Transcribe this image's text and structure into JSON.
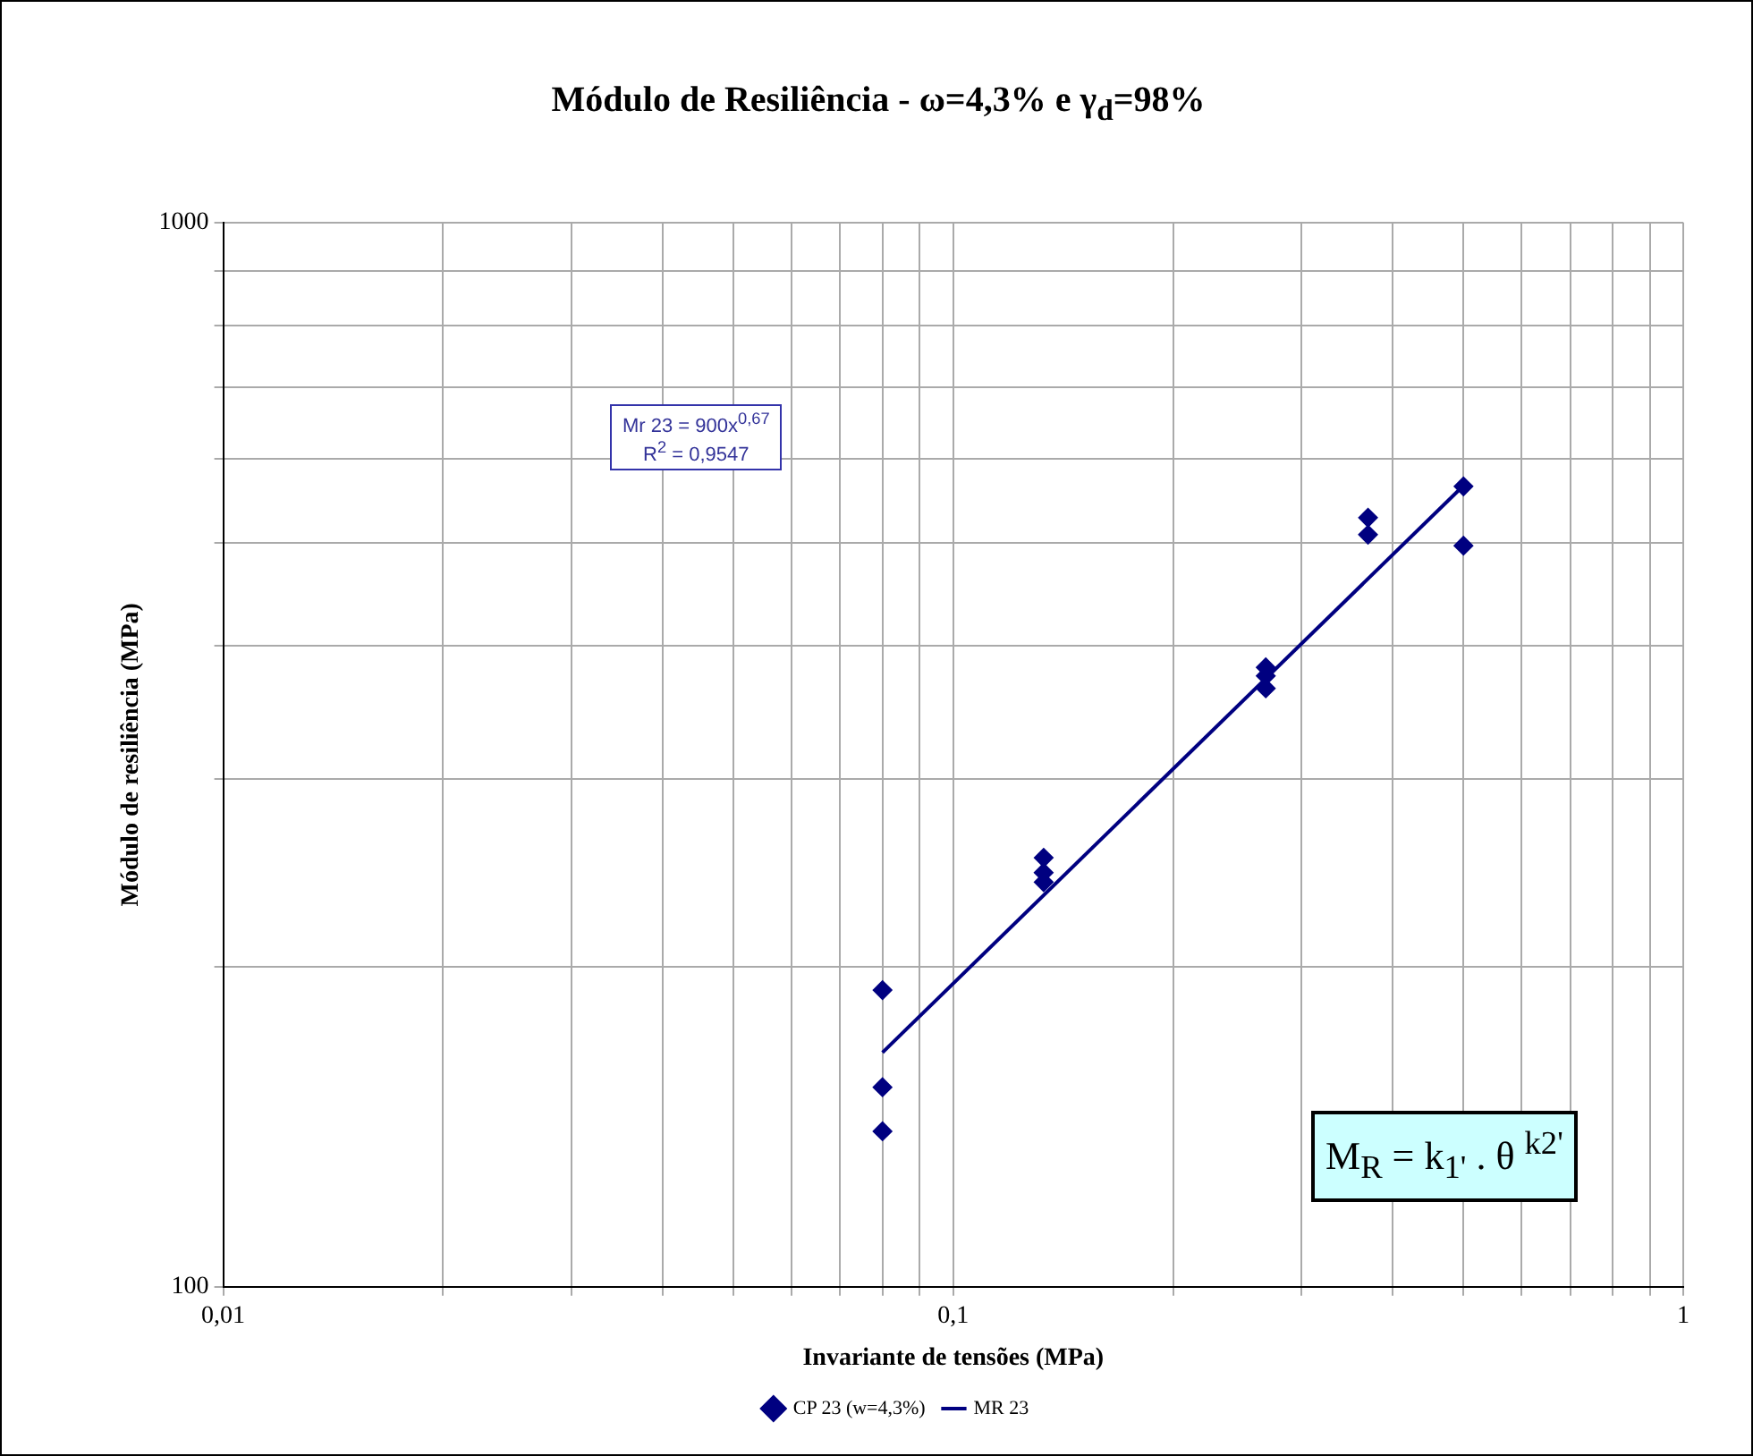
{
  "chart_data": {
    "type": "scatter",
    "title": "Módulo de Resiliência - ω=4,3%  e  γ$_{d}$=98%",
    "xlabel": "Invariante de tensões (MPa)",
    "ylabel": "Módulo de resiliência (MPa)",
    "log": "xy",
    "grid": true,
    "legend": "bottom",
    "marker": "diamond",
    "xlim": [
      0.01,
      1
    ],
    "ylim": [
      100,
      1000
    ],
    "xticks": [
      {
        "value": 0.01,
        "label": "0,01"
      },
      {
        "value": 0.02,
        "label": null
      },
      {
        "value": 0.03,
        "label": null
      },
      {
        "value": 0.04,
        "label": null
      },
      {
        "value": 0.05,
        "label": null
      },
      {
        "value": 0.06,
        "label": null
      },
      {
        "value": 0.07,
        "label": null
      },
      {
        "value": 0.08,
        "label": null
      },
      {
        "value": 0.09,
        "label": null
      },
      {
        "value": 0.1,
        "label": "0,1"
      },
      {
        "value": 0.2,
        "label": null
      },
      {
        "value": 0.3,
        "label": null
      },
      {
        "value": 0.4,
        "label": null
      },
      {
        "value": 0.5,
        "label": null
      },
      {
        "value": 0.6,
        "label": null
      },
      {
        "value": 0.7,
        "label": null
      },
      {
        "value": 0.8,
        "label": null
      },
      {
        "value": 0.9,
        "label": null
      },
      {
        "value": 1,
        "label": "1"
      }
    ],
    "yticks": [
      100,
      {
        "value": 200,
        "label": null
      },
      {
        "value": 300,
        "label": null
      },
      {
        "value": 400,
        "label": null
      },
      {
        "value": 500,
        "label": null
      },
      {
        "value": 600,
        "label": null
      },
      {
        "value": 700,
        "label": null
      },
      {
        "value": 800,
        "label": null
      },
      {
        "value": 900,
        "label": null
      },
      1000
    ],
    "series": [
      {
        "name": "CP 23 (w=4,3%)",
        "type": "scatter",
        "color": "#000080",
        "x": [
          0.08,
          0.08,
          0.08,
          0.133,
          0.133,
          0.133,
          0.268,
          0.268,
          0.268,
          0.37,
          0.37,
          0.5,
          0.5
        ],
        "values": [
          190,
          154,
          140,
          253,
          245,
          240,
          382,
          375,
          365,
          528,
          509,
          565,
          497
        ]
      },
      {
        "name": "MR 23",
        "type": "line",
        "color": "#000080",
        "marker": "none",
        "x": [
          0.08,
          0.5
        ],
        "values": [
          166,
          566
        ]
      }
    ],
    "annotations": [
      "Mr 23 = 900x$^{0,67}$\nR$^{2}$ = 0,9547",
      "M$_{R}$ = k$_{1'}$ . θ $^{k2'}$"
    ]
  }
}
